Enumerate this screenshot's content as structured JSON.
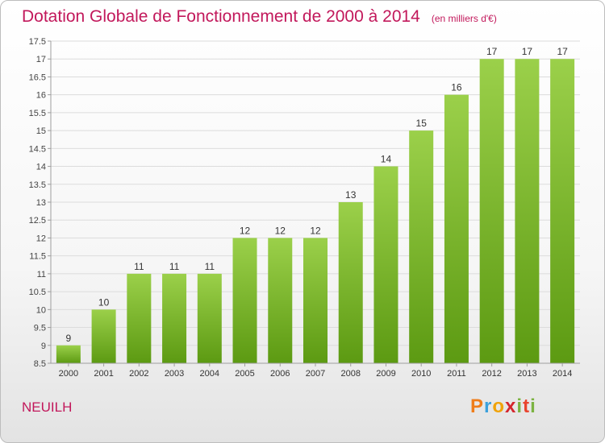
{
  "title": "Dotation Globale de Fonctionnement de 2000 à 2014",
  "subtitle": "(en milliers d'€)",
  "commune": "NEUILH",
  "logo": "Proxiti",
  "colors": {
    "bar_top": "#9bd04a",
    "bar_bottom": "#5c9a12",
    "title": "#c2185b"
  },
  "chart_data": {
    "type": "bar",
    "title": "Dotation Globale de Fonctionnement de 2000 à 2014",
    "subtitle": "(en milliers d'€)",
    "xlabel": "",
    "ylabel": "",
    "categories": [
      "2000",
      "2001",
      "2002",
      "2003",
      "2004",
      "2005",
      "2006",
      "2007",
      "2008",
      "2009",
      "2010",
      "2011",
      "2012",
      "2013",
      "2014"
    ],
    "values": [
      9,
      10,
      11,
      11,
      11,
      12,
      12,
      12,
      13,
      14,
      15,
      16,
      17,
      17,
      17
    ],
    "labels": [
      "9",
      "10",
      "11",
      "11",
      "11",
      "12",
      "12",
      "12",
      "13",
      "14",
      "15",
      "16",
      "17",
      "17",
      "17"
    ],
    "ylim": [
      8.5,
      17.5
    ],
    "yticks": [
      8.5,
      9,
      9.5,
      10,
      10.5,
      11,
      11.5,
      12,
      12.5,
      13,
      13.5,
      14,
      14.5,
      15,
      15.5,
      16,
      16.5,
      17,
      17.5
    ],
    "grid": true,
    "legend": "none"
  }
}
